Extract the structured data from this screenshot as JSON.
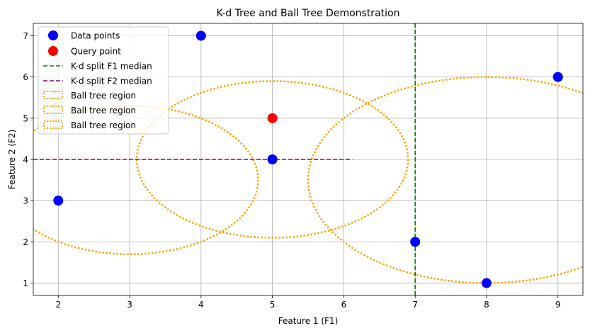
{
  "chart_data": {
    "type": "scatter",
    "title": "K-d Tree and Ball Tree Demonstration",
    "xlabel": "Feature 1 (F1)",
    "ylabel": "Feature 2 (F2)",
    "xlim": [
      1.65,
      9.35
    ],
    "ylim": [
      0.7,
      7.3
    ],
    "xticks": [
      2,
      3,
      4,
      5,
      6,
      7,
      8,
      9
    ],
    "yticks": [
      1,
      2,
      3,
      4,
      5,
      6,
      7
    ],
    "grid": true,
    "legend_position": "top-left",
    "data_points": {
      "name": "Data points",
      "color": "#0000ff",
      "points": [
        [
          2,
          3
        ],
        [
          4,
          7
        ],
        [
          5,
          4
        ],
        [
          7,
          2
        ],
        [
          8,
          1
        ],
        [
          9,
          6
        ]
      ]
    },
    "query_point": {
      "name": "Query point",
      "color": "#ff0000",
      "point": [
        5,
        5
      ]
    },
    "splits": [
      {
        "name": "K-d split F1 median",
        "color": "#008000",
        "orientation": "vertical",
        "value": 7,
        "from": 0.7,
        "to": 7.3
      },
      {
        "name": "K-d split F2 median",
        "color": "#800080",
        "orientation": "horizontal",
        "value": 4,
        "from": 1.65,
        "to": 6.12
      }
    ],
    "balls": [
      {
        "name": "Ball tree region",
        "color": "#ffa500",
        "center": [
          3,
          3.5
        ],
        "radius": 1.8
      },
      {
        "name": "Ball tree region",
        "color": "#ffa500",
        "center": [
          5,
          4
        ],
        "radius": 1.9
      },
      {
        "name": "Ball tree region",
        "color": "#ffa500",
        "center": [
          8,
          3.5
        ],
        "radius": 2.5
      }
    ],
    "legend": [
      "Data points",
      "Query point",
      "K-d split F1 median",
      "K-d split F2 median",
      "Ball tree region",
      "Ball tree region",
      "Ball tree region"
    ]
  }
}
